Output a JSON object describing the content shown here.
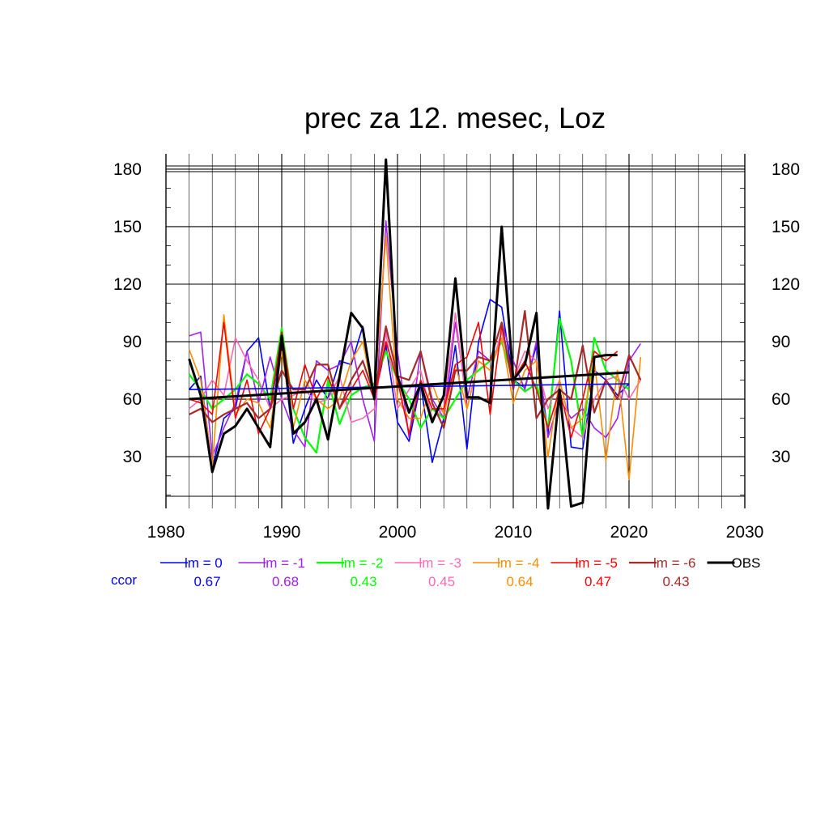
{
  "chart_data": {
    "type": "line",
    "title": "prec za 12. mesec, Loz",
    "xlim": [
      1980,
      2030
    ],
    "ylim": [
      3,
      188
    ],
    "x_ticks": [
      1980,
      1990,
      2000,
      2010,
      2020,
      2030
    ],
    "y_ticks": [
      30,
      60,
      90,
      120,
      150,
      180
    ],
    "x_minor_step": 2,
    "y_minor_step": 10,
    "grid": true,
    "right_axis_labels": true,
    "x": [
      1982,
      1983,
      1984,
      1985,
      1986,
      1987,
      1988,
      1989,
      1990,
      1991,
      1992,
      1993,
      1994,
      1995,
      1996,
      1997,
      1998,
      1999,
      2000,
      2001,
      2002,
      2003,
      2004,
      2005,
      2006,
      2007,
      2008,
      2009,
      2010,
      2011,
      2012,
      2013,
      2014,
      2015,
      2016,
      2017,
      2018,
      2019,
      2020,
      2021
    ],
    "series": [
      {
        "name": "lm = 0",
        "color": "#0000ff",
        "width": 1.6,
        "ccor": "0.67",
        "values": [
          65,
          72,
          24,
          50,
          55,
          85,
          92,
          55,
          90,
          37,
          55,
          70,
          60,
          80,
          78,
          98,
          60,
          88,
          48,
          38,
          68,
          27,
          50,
          88,
          34,
          90,
          112,
          108,
          70,
          66,
          88,
          42,
          106,
          35,
          34,
          75,
          70,
          62,
          68,
          null
        ],
        "trend": [
          65,
          68
        ]
      },
      {
        "name": "lm = -1",
        "color": "#a020f0",
        "width": 1.6,
        "ccor": "0.68",
        "values": [
          93,
          95,
          30,
          45,
          58,
          85,
          58,
          82,
          60,
          44,
          35,
          80,
          75,
          78,
          90,
          60,
          38,
          153,
          85,
          40,
          85,
          60,
          50,
          100,
          60,
          85,
          80,
          100,
          80,
          65,
          90,
          40,
          60,
          50,
          55,
          45,
          40,
          50,
          80,
          89
        ],
        "trend": null
      },
      {
        "name": "lm = -2",
        "color": "#00ff00",
        "width": 2.2,
        "ccor": "0.43",
        "values": [
          73,
          65,
          55,
          60,
          65,
          73,
          68,
          60,
          97,
          55,
          40,
          32,
          70,
          47,
          62,
          66,
          68,
          85,
          70,
          60,
          45,
          55,
          50,
          60,
          70,
          75,
          80,
          90,
          70,
          64,
          68,
          45,
          102,
          80,
          40,
          92,
          75,
          70,
          65,
          null
        ],
        "trend": null
      },
      {
        "name": "lm = -3",
        "color": "#ff69b4",
        "width": 1.6,
        "ccor": "0.45",
        "values": [
          55,
          60,
          70,
          62,
          92,
          80,
          70,
          55,
          60,
          62,
          65,
          58,
          60,
          72,
          48,
          50,
          55,
          95,
          55,
          65,
          75,
          50,
          55,
          105,
          55,
          80,
          75,
          95,
          70,
          85,
          80,
          55,
          70,
          45,
          40,
          60,
          70,
          72,
          60,
          70
        ],
        "trend": null
      },
      {
        "name": "lm = -4",
        "color": "#ff8c00",
        "width": 1.6,
        "ccor": "0.64",
        "values": [
          86,
          70,
          25,
          104,
          52,
          60,
          58,
          45,
          85,
          45,
          70,
          60,
          55,
          60,
          80,
          90,
          60,
          145,
          60,
          50,
          50,
          68,
          52,
          78,
          55,
          80,
          75,
          92,
          58,
          75,
          80,
          30,
          70,
          45,
          50,
          80,
          28,
          75,
          18,
          82
        ],
        "trend": null
      },
      {
        "name": "lm = -5",
        "color": "#ff0000",
        "width": 1.6,
        "ccor": "0.47",
        "values": [
          60,
          58,
          52,
          100,
          50,
          70,
          42,
          55,
          95,
          55,
          78,
          60,
          72,
          55,
          65,
          75,
          60,
          90,
          70,
          42,
          70,
          55,
          55,
          78,
          82,
          100,
          52,
          98,
          70,
          80,
          65,
          45,
          65,
          40,
          60,
          85,
          80,
          85,
          null,
          65
        ],
        "trend": null
      },
      {
        "name": "lm = -6",
        "color": "#a52a2a",
        "width": 2.2,
        "ccor": "0.43",
        "values": [
          52,
          55,
          48,
          52,
          55,
          58,
          50,
          55,
          75,
          65,
          65,
          78,
          78,
          55,
          70,
          80,
          62,
          98,
          72,
          70,
          85,
          58,
          45,
          75,
          75,
          82,
          80,
          100,
          65,
          106,
          50,
          60,
          65,
          60,
          88,
          53,
          70,
          60,
          83,
          70
        ],
        "trend": null
      },
      {
        "name": "OBS",
        "color": "#000000",
        "width": 3.0,
        "ccor": "",
        "values": [
          81,
          62,
          22,
          42,
          46,
          55,
          45,
          35,
          93,
          42,
          48,
          60,
          39,
          72,
          105,
          97,
          60,
          185,
          72,
          53,
          68,
          48,
          62,
          123,
          61,
          61,
          58,
          150,
          70,
          78,
          105,
          3,
          65,
          4,
          6,
          82,
          83,
          83,
          null,
          null
        ],
        "trend": [
          60,
          74
        ]
      }
    ],
    "trend_x": [
      1982,
      2020
    ],
    "legend_placement": "bottom",
    "ccor_label": "ccor"
  }
}
